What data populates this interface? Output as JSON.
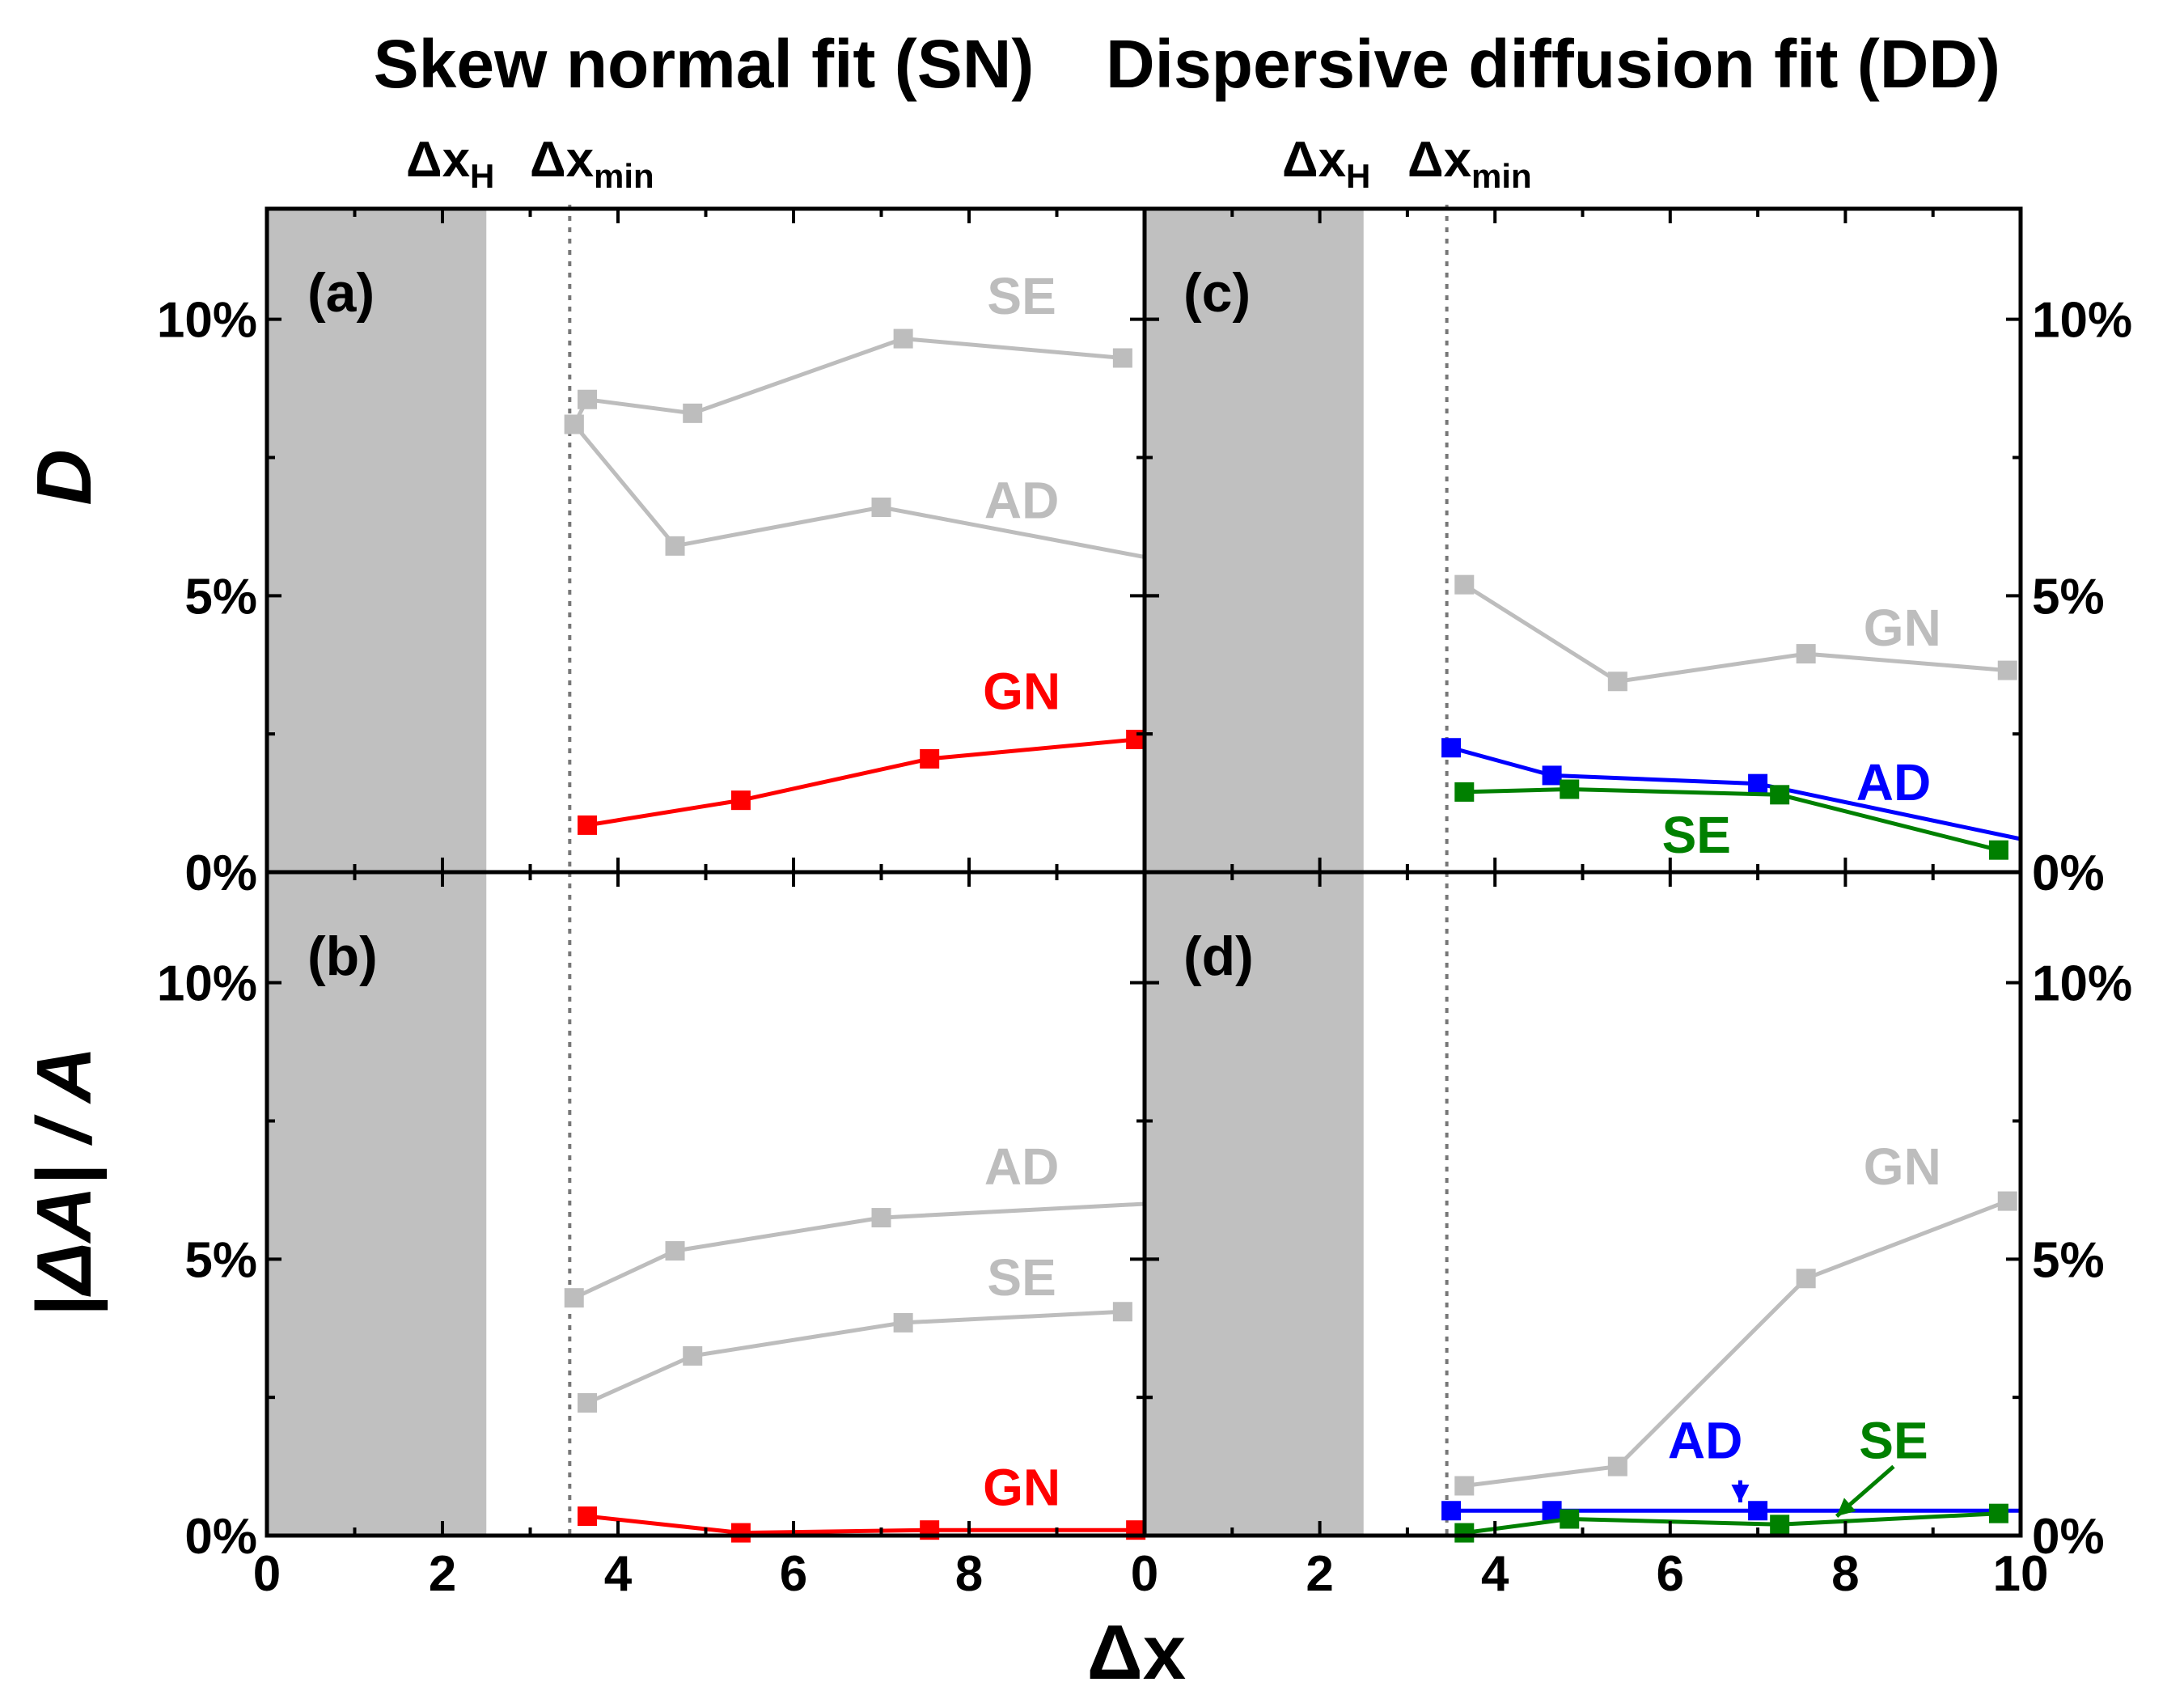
{
  "titles": {
    "left": "Skew normal fit (SN)",
    "right": "Dispersive diffusion fit (DD)"
  },
  "annotations": {
    "delta_symbol": "Δ",
    "dxH_main": "x",
    "dxH_sub": "H",
    "dxmin_main": "x",
    "dxmin_sub": "min",
    "dxH_value": 2.5,
    "dxmin_value": 3.45
  },
  "axis_labels": {
    "top_y": "D",
    "bottom_y_pre": "|",
    "bottom_y_delta": "Δ",
    "bottom_y_post": "A| / A",
    "x": "Δx"
  },
  "colors": {
    "gray": "#bdbdbd",
    "shade": "#c0c0c0",
    "red": "#ff0000",
    "blue": "#0000ff",
    "green": "#008000"
  },
  "chart_data": [
    {
      "panel": "(a)",
      "type": "line",
      "xlim": [
        0,
        10
      ],
      "ylim": [
        0,
        12
      ],
      "yticks": [
        "0%",
        "5%",
        "10%"
      ],
      "xticks": [
        "0",
        "2",
        "4",
        "6",
        "8"
      ],
      "series": [
        {
          "name": "SE",
          "color": "#bdbdbd",
          "x": [
            3.5,
            3.65,
            4.85,
            7.25,
            9.75
          ],
          "y": [
            8.1,
            8.55,
            8.3,
            9.65,
            9.3
          ]
        },
        {
          "name": "AD",
          "color": "#bdbdbd",
          "x": [
            3.5,
            4.65,
            7.0,
            10.0
          ],
          "y": [
            8.1,
            5.9,
            6.6,
            5.7
          ]
        },
        {
          "name": "GN",
          "color": "#ff0000",
          "x": [
            3.65,
            5.4,
            7.55,
            9.9
          ],
          "y": [
            0.85,
            1.3,
            2.05,
            2.4
          ]
        }
      ]
    },
    {
      "panel": "(b)",
      "type": "line",
      "xlim": [
        0,
        10
      ],
      "ylim": [
        0,
        12
      ],
      "yticks": [
        "0%",
        "5%",
        "10%"
      ],
      "xticks": [
        "0",
        "2",
        "4",
        "6",
        "8"
      ],
      "series": [
        {
          "name": "AD",
          "color": "#bdbdbd",
          "x": [
            3.5,
            4.65,
            7.0,
            10.0
          ],
          "y": [
            4.3,
            5.15,
            5.75,
            6.0
          ]
        },
        {
          "name": "SE",
          "color": "#bdbdbd",
          "x": [
            3.65,
            4.85,
            7.25,
            9.75
          ],
          "y": [
            2.4,
            3.25,
            3.85,
            4.05
          ]
        },
        {
          "name": "GN",
          "color": "#ff0000",
          "x": [
            3.65,
            5.4,
            7.55,
            9.9
          ],
          "y": [
            0.35,
            0.05,
            0.1,
            0.1
          ]
        }
      ]
    },
    {
      "panel": "(c)",
      "type": "line",
      "xlim": [
        0,
        10
      ],
      "ylim": [
        0,
        12
      ],
      "yticks": [
        "0%",
        "5%",
        "10%"
      ],
      "xticks": [],
      "series": [
        {
          "name": "GN",
          "color": "#bdbdbd",
          "x": [
            3.65,
            5.4,
            7.55,
            9.85
          ],
          "y": [
            5.2,
            3.45,
            3.95,
            3.65
          ]
        },
        {
          "name": "AD",
          "color": "#0000ff",
          "x": [
            3.5,
            4.65,
            7.0,
            10.0
          ],
          "y": [
            2.25,
            1.75,
            1.6,
            0.6
          ]
        },
        {
          "name": "SE",
          "color": "#008000",
          "x": [
            3.65,
            4.85,
            7.25,
            9.75
          ],
          "y": [
            1.45,
            1.5,
            1.4,
            0.4
          ]
        }
      ]
    },
    {
      "panel": "(d)",
      "type": "line",
      "xlim": [
        0,
        10
      ],
      "ylim": [
        0,
        12
      ],
      "yticks": [
        "0%",
        "5%",
        "10%"
      ],
      "xticks": [
        "0",
        "2",
        "4",
        "6",
        "8",
        "10"
      ],
      "series": [
        {
          "name": "GN",
          "color": "#bdbdbd",
          "x": [
            3.65,
            5.4,
            7.55,
            9.85
          ],
          "y": [
            0.9,
            1.25,
            4.65,
            6.05
          ]
        },
        {
          "name": "AD",
          "color": "#0000ff",
          "x": [
            3.5,
            4.65,
            7.0,
            10.0
          ],
          "y": [
            0.45,
            0.45,
            0.45,
            0.45
          ]
        },
        {
          "name": "SE",
          "color": "#008000",
          "x": [
            3.65,
            4.85,
            7.25,
            9.75
          ],
          "y": [
            0.05,
            0.3,
            0.2,
            0.4
          ]
        }
      ]
    }
  ]
}
